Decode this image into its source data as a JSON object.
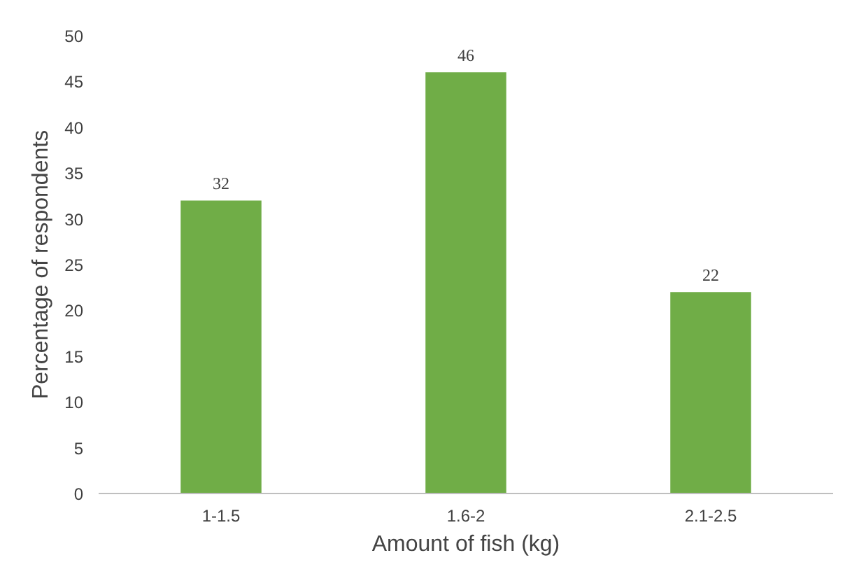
{
  "chart_data": {
    "type": "bar",
    "xlabel": "Amount of fish (kg)",
    "ylabel": "Percentage of respondents",
    "categories": [
      "1-1.5",
      "1.6-2",
      "2.1-2.5"
    ],
    "values": [
      32,
      46,
      22
    ],
    "color": "#70ad47",
    "ylim": [
      0,
      50
    ],
    "yticks": [
      0,
      5,
      10,
      15,
      20,
      25,
      30,
      35,
      40,
      45,
      50
    ],
    "grid": false,
    "data_labels": true
  }
}
